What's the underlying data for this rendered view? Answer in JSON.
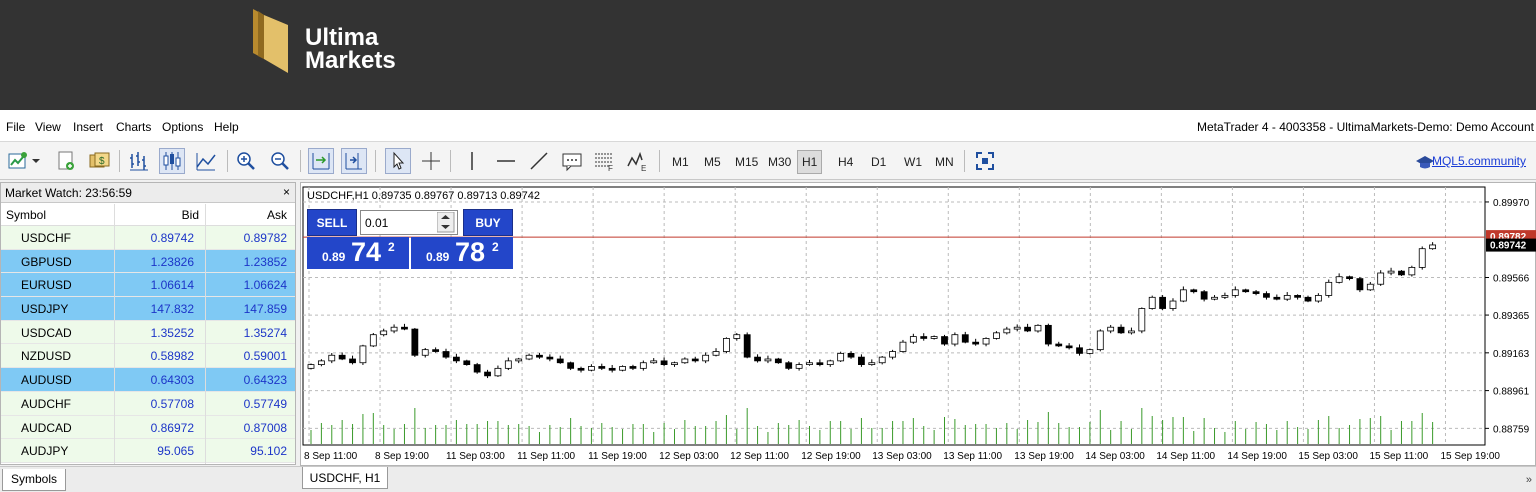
{
  "brand": {
    "line1": "Ultima",
    "line2": "Markets",
    "logo_color": "#c9a24b"
  },
  "menu": [
    "File",
    "View",
    "Insert",
    "Charts",
    "Options",
    "Help"
  ],
  "window_title": "MetaTrader 4 - 4003358 - UltimaMarkets-Demo: Demo Account",
  "timeframes": [
    "M1",
    "M5",
    "M15",
    "M30",
    "H1",
    "H4",
    "D1",
    "W1",
    "MN"
  ],
  "active_timeframe": "H1",
  "mql_link": "MQL5.community",
  "market_watch": {
    "title": "Market Watch: 23:56:59",
    "close": "×",
    "headers": {
      "symbol": "Symbol",
      "bid": "Bid",
      "ask": "Ask"
    },
    "rows": [
      {
        "symbol": "USDCHF",
        "bid": "0.89742",
        "ask": "0.89782",
        "selected": false
      },
      {
        "symbol": "GBPUSD",
        "bid": "1.23826",
        "ask": "1.23852",
        "selected": true
      },
      {
        "symbol": "EURUSD",
        "bid": "1.06614",
        "ask": "1.06624",
        "selected": true
      },
      {
        "symbol": "USDJPY",
        "bid": "147.832",
        "ask": "147.859",
        "selected": true
      },
      {
        "symbol": "USDCAD",
        "bid": "1.35252",
        "ask": "1.35274",
        "selected": false
      },
      {
        "symbol": "NZDUSD",
        "bid": "0.58982",
        "ask": "0.59001",
        "selected": false
      },
      {
        "symbol": "AUDUSD",
        "bid": "0.64303",
        "ask": "0.64323",
        "selected": true
      },
      {
        "symbol": "AUDCHF",
        "bid": "0.57708",
        "ask": "0.57749",
        "selected": false
      },
      {
        "symbol": "AUDCAD",
        "bid": "0.86972",
        "ask": "0.87008",
        "selected": false
      },
      {
        "symbol": "AUDJPY",
        "bid": "95.065",
        "ask": "95.102",
        "selected": false
      }
    ],
    "tab": "Symbols"
  },
  "chart": {
    "info": "USDCHF,H1  0.89735 0.89767 0.89713 0.89742",
    "tab": "USDCHF, H1",
    "trade": {
      "sell_label": "SELL",
      "buy_label": "BUY",
      "lot": "0.01",
      "sell_small": "0.89",
      "sell_big": "74",
      "sell_sup": "2",
      "buy_small": "0.89",
      "buy_big": "78",
      "buy_sup": "2"
    },
    "ask_label": "0.89782",
    "bid_label": "0.89742",
    "scroll_marker": "»"
  },
  "chart_data": {
    "type": "candlestick",
    "symbol": "USDCHF",
    "timeframe": "H1",
    "y_ticks": [
      "0.89970",
      "0.89566",
      "0.89365",
      "0.89163",
      "0.88961",
      "0.88759"
    ],
    "x_ticks": [
      "8 Sep 11:00",
      "8 Sep 19:00",
      "11 Sep 03:00",
      "11 Sep 11:00",
      "11 Sep 19:00",
      "12 Sep 03:00",
      "12 Sep 11:00",
      "12 Sep 19:00",
      "13 Sep 03:00",
      "13 Sep 11:00",
      "13 Sep 19:00",
      "14 Sep 03:00",
      "14 Sep 11:00",
      "14 Sep 19:00",
      "15 Sep 03:00",
      "15 Sep 11:00",
      "15 Sep 19:00"
    ],
    "ylim": [
      0.8867,
      0.9005
    ],
    "grid": true,
    "close_series": [
      0.891,
      0.8912,
      0.8915,
      0.8913,
      0.8911,
      0.892,
      0.8926,
      0.8928,
      0.893,
      0.8929,
      0.8915,
      0.8918,
      0.8917,
      0.8914,
      0.8912,
      0.891,
      0.8906,
      0.8904,
      0.8908,
      0.8912,
      0.8913,
      0.8915,
      0.8914,
      0.8913,
      0.8911,
      0.8908,
      0.8907,
      0.8909,
      0.8908,
      0.8907,
      0.8909,
      0.8908,
      0.8911,
      0.8912,
      0.891,
      0.8911,
      0.8913,
      0.8912,
      0.8915,
      0.8917,
      0.8924,
      0.8926,
      0.8914,
      0.8912,
      0.8913,
      0.8911,
      0.8908,
      0.891,
      0.8911,
      0.891,
      0.8912,
      0.8916,
      0.8914,
      0.891,
      0.8911,
      0.8914,
      0.8917,
      0.8922,
      0.8925,
      0.8924,
      0.8925,
      0.8921,
      0.8926,
      0.8922,
      0.8921,
      0.8924,
      0.8927,
      0.8929,
      0.893,
      0.8928,
      0.8931,
      0.8921,
      0.892,
      0.8919,
      0.8916,
      0.8918,
      0.8928,
      0.893,
      0.8927,
      0.8928,
      0.894,
      0.8946,
      0.894,
      0.8944,
      0.895,
      0.8949,
      0.8945,
      0.8946,
      0.8947,
      0.895,
      0.8949,
      0.8948,
      0.8946,
      0.8945,
      0.8947,
      0.8946,
      0.8944,
      0.8947,
      0.8954,
      0.8957,
      0.8956,
      0.895,
      0.8953,
      0.8959,
      0.896,
      0.8958,
      0.8962,
      0.8972,
      0.8974
    ]
  },
  "colors": {
    "accent": "#2346c9",
    "selected_row": "#7fc9f4",
    "row_bg": "#eefaea",
    "volume": "#3a9a2a",
    "ask_line": "#c0392b"
  }
}
